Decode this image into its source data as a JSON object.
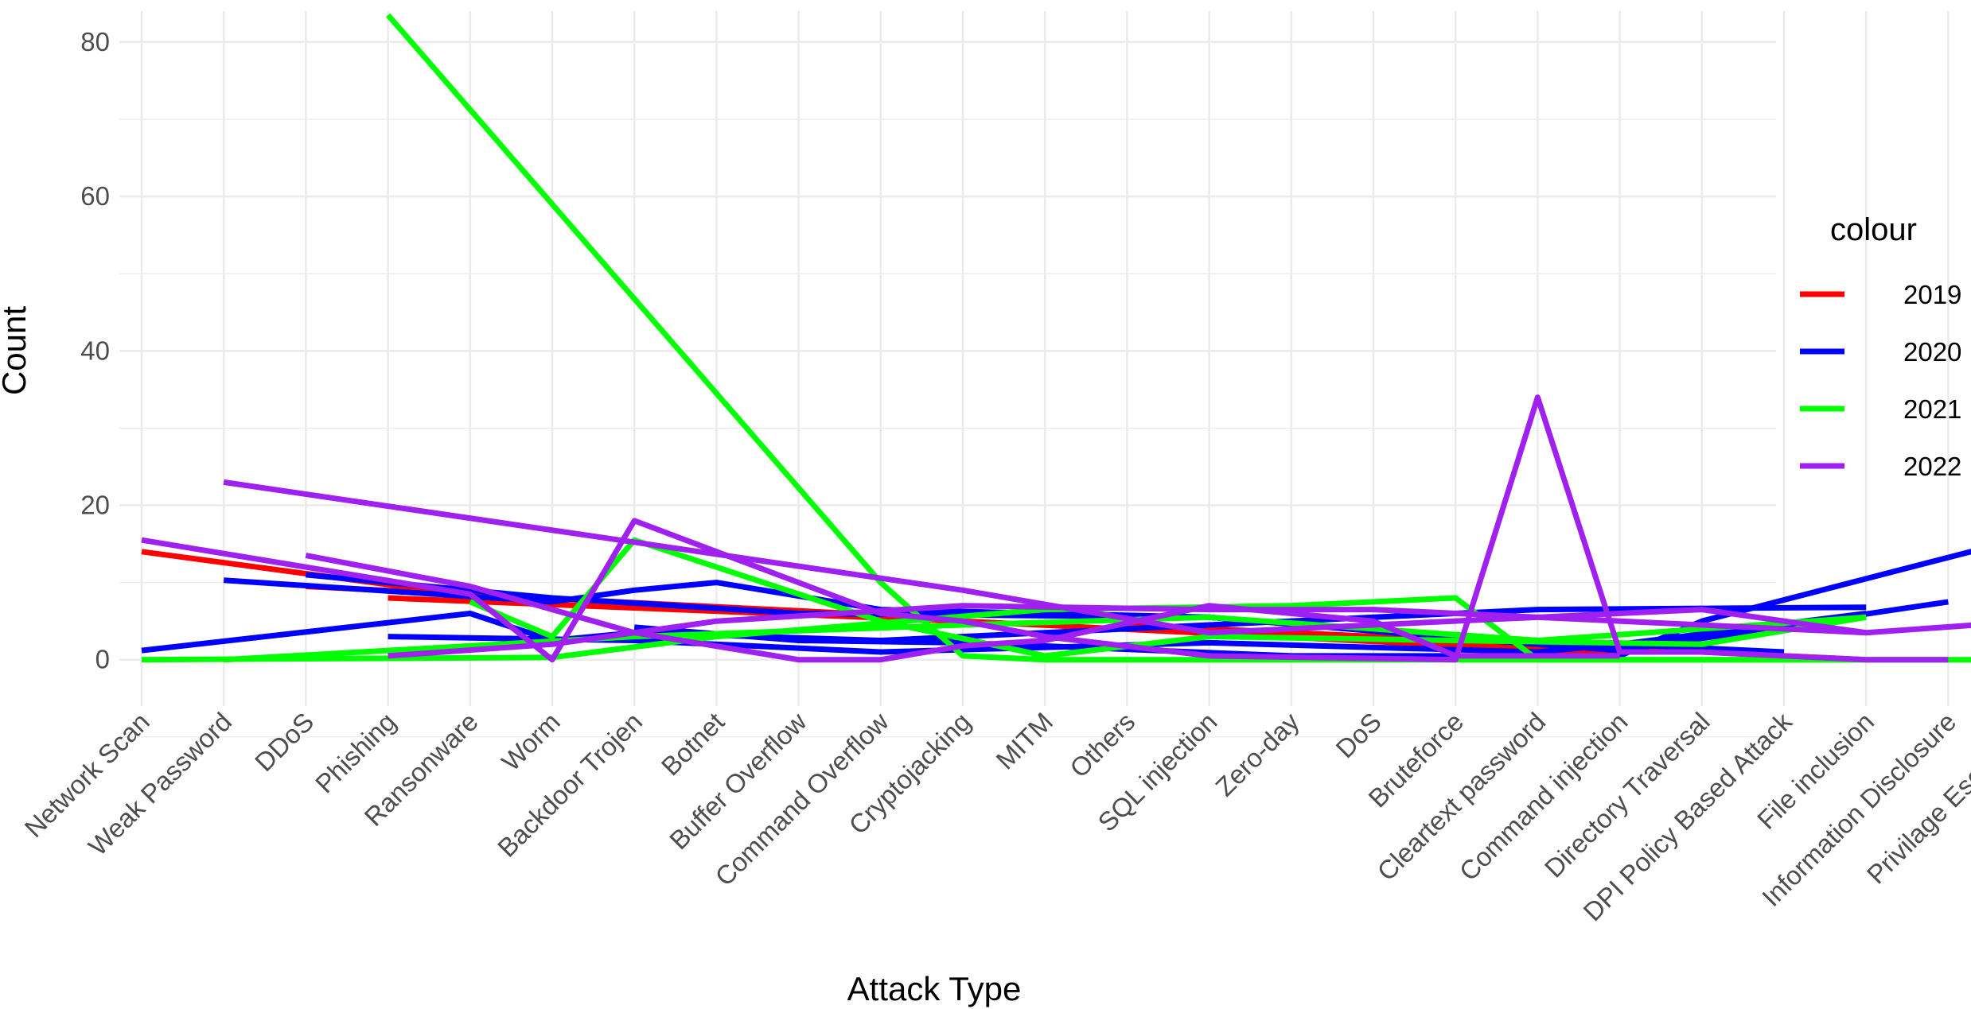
{
  "chart_data": {
    "type": "line",
    "xlabel": "Attack Type",
    "ylabel": "Count",
    "ylim": [
      -6,
      84
    ],
    "y_ticks": [
      0,
      20,
      40,
      60,
      80
    ],
    "grid": true,
    "legend": {
      "title": "colour",
      "position": "right"
    },
    "categories": [
      "Network Scan",
      "Weak Password",
      "DDoS",
      "Phishing",
      "Ransonware",
      "Worm",
      "Backdoor Trojen",
      "Botnet",
      "Buffer Overflow",
      "Command Overflow",
      "Cryptojacking",
      "MITM",
      "Others",
      "SQL injection",
      "Zero-day",
      "DoS",
      "Bruteforce",
      "Cleartext password",
      "Command injection",
      "Directory Traversal",
      "DPI Policy Based Attack",
      "File inclusion",
      "Information Disclosure",
      "Privilage Escalation"
    ],
    "series": [
      {
        "name": "2019",
        "color": "#ff0000",
        "segments": [
          [
            [
              0,
              14
            ],
            [
              4,
              8.3
            ]
          ],
          [
            [
              2,
              9.5
            ],
            [
              9,
              5.8
            ]
          ],
          [
            [
              3,
              8
            ],
            [
              10,
              5
            ]
          ],
          [
            [
              10,
              5
            ],
            [
              18,
              0.8
            ]
          ],
          [
            [
              12,
              4.5
            ],
            [
              21,
              0
            ]
          ]
        ]
      },
      {
        "name": "2020",
        "color": "#0000ff",
        "segments": [
          [
            [
              0,
              1.2
            ],
            [
              4,
              6
            ],
            [
              5,
              2.5
            ],
            [
              6,
              3.5
            ],
            [
              9,
              2.5
            ],
            [
              13,
              4.5
            ],
            [
              17,
              6.5
            ],
            [
              21,
              6.8
            ]
          ],
          [
            [
              1,
              10.3
            ],
            [
              5,
              7.5
            ],
            [
              6,
              9
            ],
            [
              7,
              10
            ],
            [
              9,
              6.5
            ],
            [
              13,
              5.5
            ],
            [
              16,
              3
            ],
            [
              20,
              1
            ]
          ],
          [
            [
              2,
              11
            ],
            [
              5,
              8
            ],
            [
              8,
              6
            ],
            [
              13,
              5.5
            ],
            [
              16,
              2.8
            ],
            [
              18,
              1.2
            ],
            [
              22,
              7.5
            ]
          ],
          [
            [
              3,
              3
            ],
            [
              6,
              2.5
            ],
            [
              9,
              1
            ],
            [
              13,
              2.2
            ],
            [
              17,
              1
            ],
            [
              18,
              2
            ],
            [
              21,
              6
            ]
          ],
          [
            [
              6,
              4.2
            ],
            [
              8,
              2.5
            ],
            [
              10,
              2.2
            ],
            [
              14,
              0.5
            ],
            [
              18,
              0.5
            ],
            [
              19,
              5
            ],
            [
              23,
              16
            ]
          ]
        ]
      },
      {
        "name": "2021",
        "color": "#00ff00",
        "segments": [
          [
            [
              0,
              0
            ],
            [
              5,
              0.3
            ],
            [
              7,
              3
            ],
            [
              11,
              6.5
            ],
            [
              14,
              7
            ],
            [
              16,
              8
            ],
            [
              17,
              0
            ],
            [
              20,
              0
            ],
            [
              23,
              0
            ]
          ],
          [
            [
              1,
              0
            ],
            [
              3,
              1.2
            ],
            [
              6,
              3
            ],
            [
              10,
              4.5
            ],
            [
              13,
              5.5
            ],
            [
              17,
              2.5
            ],
            [
              21,
              5.5
            ]
          ],
          [
            [
              3,
              83.5
            ],
            [
              9,
              10
            ],
            [
              10,
              0.5
            ],
            [
              11,
              0
            ],
            [
              14,
              0
            ],
            [
              22,
              0
            ]
          ],
          [
            [
              4,
              7.5
            ],
            [
              5,
              3
            ],
            [
              6,
              15.5
            ],
            [
              9,
              5
            ],
            [
              11,
              0.5
            ],
            [
              13,
              3
            ],
            [
              16,
              2.5
            ],
            [
              19,
              2
            ],
            [
              21,
              5.5
            ]
          ]
        ]
      },
      {
        "name": "2022",
        "color": "#a020f0",
        "segments": [
          [
            [
              0,
              15.5
            ],
            [
              4,
              8.5
            ],
            [
              5,
              0
            ],
            [
              6,
              18
            ],
            [
              7,
              14
            ],
            [
              9,
              6
            ],
            [
              10,
              5
            ],
            [
              11,
              3
            ],
            [
              13,
              0.5
            ],
            [
              16,
              0
            ],
            [
              17,
              34
            ],
            [
              18,
              1
            ],
            [
              19,
              1
            ],
            [
              21,
              0
            ],
            [
              22,
              0
            ]
          ],
          [
            [
              1,
              23
            ],
            [
              10,
              9
            ],
            [
              13,
              3.5
            ],
            [
              19,
              6.5
            ],
            [
              21,
              3.5
            ],
            [
              23,
              5
            ]
          ],
          [
            [
              2,
              13.5
            ],
            [
              4,
              9.5
            ],
            [
              6,
              3.5
            ],
            [
              8,
              0
            ],
            [
              9,
              0
            ],
            [
              10,
              1.8
            ],
            [
              11,
              2.5
            ],
            [
              13,
              7
            ],
            [
              15,
              5
            ],
            [
              16,
              0.5
            ],
            [
              18,
              0.5
            ]
          ],
          [
            [
              3,
              0.5
            ],
            [
              5,
              2
            ],
            [
              7,
              5
            ],
            [
              10,
              7
            ],
            [
              13,
              6.5
            ],
            [
              15,
              6.5
            ],
            [
              19,
              4.5
            ],
            [
              21,
              3.5
            ]
          ]
        ]
      }
    ]
  }
}
